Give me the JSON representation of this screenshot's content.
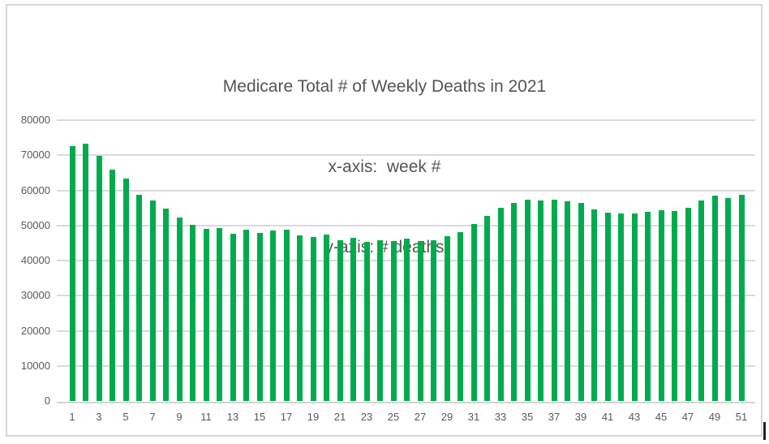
{
  "window": {
    "background_color": "#ffffff",
    "frame_border_color": "#d8d8d8"
  },
  "chart_data": {
    "type": "bar",
    "title": "Medicare Total # of Weekly Deaths in 2021",
    "subtitle_lines": [
      "x-axis:  week #",
      "y-axis: # deaths"
    ],
    "xlabel": "week #",
    "ylabel": "# deaths",
    "x": [
      1,
      2,
      3,
      4,
      5,
      6,
      7,
      8,
      9,
      10,
      11,
      12,
      13,
      14,
      15,
      16,
      17,
      18,
      19,
      20,
      21,
      22,
      23,
      24,
      25,
      26,
      27,
      28,
      29,
      30,
      31,
      32,
      33,
      34,
      35,
      36,
      37,
      38,
      39,
      40,
      41,
      42,
      43,
      44,
      45,
      46,
      47,
      48,
      49,
      50,
      51
    ],
    "values": [
      72700,
      73200,
      69900,
      65800,
      63400,
      58700,
      57000,
      54700,
      52200,
      50100,
      49000,
      49200,
      47600,
      48700,
      47800,
      48600,
      48700,
      47200,
      46700,
      47400,
      45800,
      46400,
      45400,
      45700,
      45500,
      46300,
      45500,
      45800,
      47000,
      48100,
      50500,
      52700,
      55100,
      56400,
      57400,
      57200,
      57300,
      56800,
      56400,
      54500,
      53600,
      53300,
      53400,
      53900,
      54300,
      54100,
      55000,
      57200,
      58500,
      57800,
      58700
    ],
    "ylim": [
      0,
      80000
    ],
    "yticks": [
      0,
      10000,
      20000,
      30000,
      40000,
      50000,
      60000,
      70000,
      80000
    ],
    "xtick_labels": [
      1,
      3,
      5,
      7,
      9,
      11,
      13,
      15,
      17,
      19,
      21,
      23,
      25,
      27,
      29,
      31,
      33,
      35,
      37,
      39,
      41,
      43,
      45,
      47,
      49,
      51
    ],
    "grid": "horizontal",
    "legend": "none",
    "bar_color": "#00ab4e",
    "gridline_color": "#dadada",
    "tick_label_color": "#595959",
    "title_color": "#555555"
  }
}
